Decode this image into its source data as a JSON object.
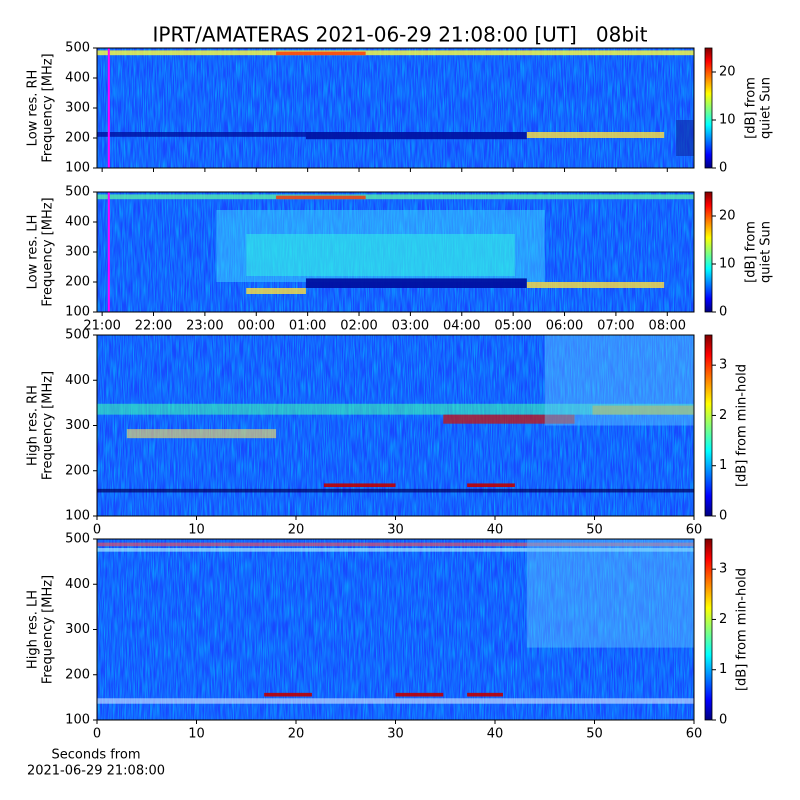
{
  "chart_data": [
    {
      "type": "heatmap",
      "title": "IPRT/AMATERAS 2021-06-29 21:08:00 [UT]   08bit",
      "ylabel": [
        "Low res. RH",
        "Frequency [MHz]"
      ],
      "ylim": [
        100,
        500
      ],
      "yticks": [
        100,
        200,
        300,
        400,
        500
      ],
      "xlim": [
        20.9,
        32.52
      ],
      "marker_x": 21.13,
      "colorbar": {
        "label": [
          "[dB] from",
          "quiet Sun"
        ],
        "lim": [
          0,
          25
        ],
        "ticks": [
          0,
          10,
          20
        ]
      }
    },
    {
      "type": "heatmap",
      "ylabel": [
        "Low res. LH",
        "Frequency [MHz]"
      ],
      "ylim": [
        100,
        500
      ],
      "yticks": [
        100,
        200,
        300,
        400,
        500
      ],
      "xlim": [
        20.9,
        32.52
      ],
      "marker_x": 21.13,
      "xticks": [
        {
          "value": 21,
          "label": "21:00"
        },
        {
          "value": 22,
          "label": "22:00"
        },
        {
          "value": 23,
          "label": "23:00"
        },
        {
          "value": 24,
          "label": "00:00"
        },
        {
          "value": 25,
          "label": "01:00"
        },
        {
          "value": 26,
          "label": "02:00"
        },
        {
          "value": 27,
          "label": "03:00"
        },
        {
          "value": 28,
          "label": "04:00"
        },
        {
          "value": 29,
          "label": "05:00"
        },
        {
          "value": 30,
          "label": "06:00"
        },
        {
          "value": 31,
          "label": "07:00"
        },
        {
          "value": 32,
          "label": "08:00"
        }
      ],
      "colorbar": {
        "label": [
          "[dB] from",
          "quiet Sun"
        ],
        "lim": [
          0,
          25
        ],
        "ticks": [
          0,
          10,
          20
        ]
      }
    },
    {
      "type": "heatmap",
      "ylabel": [
        "High res. RH",
        "Frequency [MHz]"
      ],
      "ylim": [
        100,
        500
      ],
      "yticks": [
        100,
        200,
        300,
        400,
        500
      ],
      "xlim": [
        0,
        60
      ],
      "xticks": [
        0,
        10,
        20,
        30,
        40,
        50,
        60
      ],
      "colorbar": {
        "label": [
          "[dB] from min-hold"
        ],
        "lim": [
          0,
          3.6
        ],
        "ticks": [
          0,
          1,
          2,
          3
        ]
      }
    },
    {
      "type": "heatmap",
      "ylabel": [
        "High res. LH",
        "Frequency [MHz]"
      ],
      "ylim": [
        100,
        500
      ],
      "yticks": [
        100,
        200,
        300,
        400,
        500
      ],
      "xlim": [
        0,
        60
      ],
      "xticks": [
        0,
        10,
        20,
        30,
        40,
        50,
        60
      ],
      "xlabel": [
        "Seconds from",
        "2021-06-29 21:08:00"
      ],
      "colorbar": {
        "label": [
          "[dB] from min-hold"
        ],
        "lim": [
          0,
          3.6
        ],
        "ticks": [
          0,
          1,
          2,
          3
        ]
      }
    }
  ]
}
